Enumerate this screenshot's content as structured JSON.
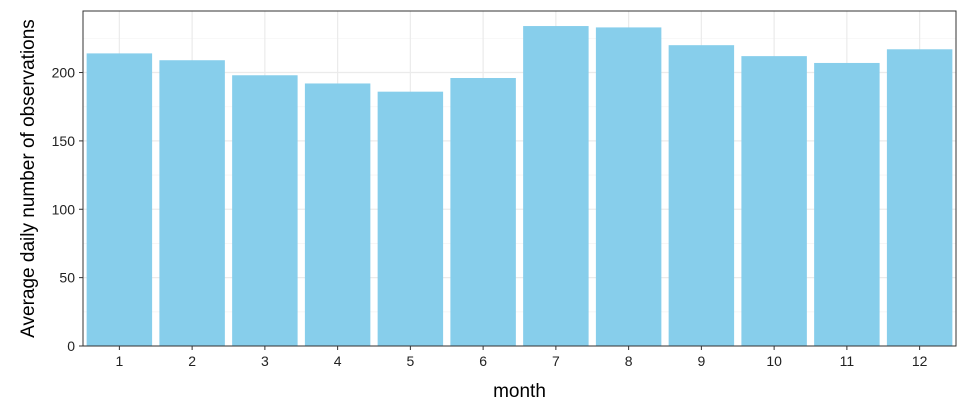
{
  "chart_data": {
    "type": "bar",
    "title": "",
    "xlabel": "month",
    "ylabel": "Average daily number of observations",
    "categories": [
      "1",
      "2",
      "3",
      "4",
      "5",
      "6",
      "7",
      "8",
      "9",
      "10",
      "11",
      "12"
    ],
    "values": [
      214,
      209,
      198,
      192,
      186,
      196,
      234,
      233,
      220,
      212,
      207,
      217
    ],
    "ylim": [
      0,
      245
    ],
    "yticks": [
      0,
      50,
      100,
      150,
      200
    ],
    "grid": true,
    "legend": "none",
    "colors": {
      "bar": "#87CEEB",
      "panel_border": "#333333",
      "grid_major": "#EBEBEB",
      "grid_minor": "#F5F5F5"
    }
  }
}
